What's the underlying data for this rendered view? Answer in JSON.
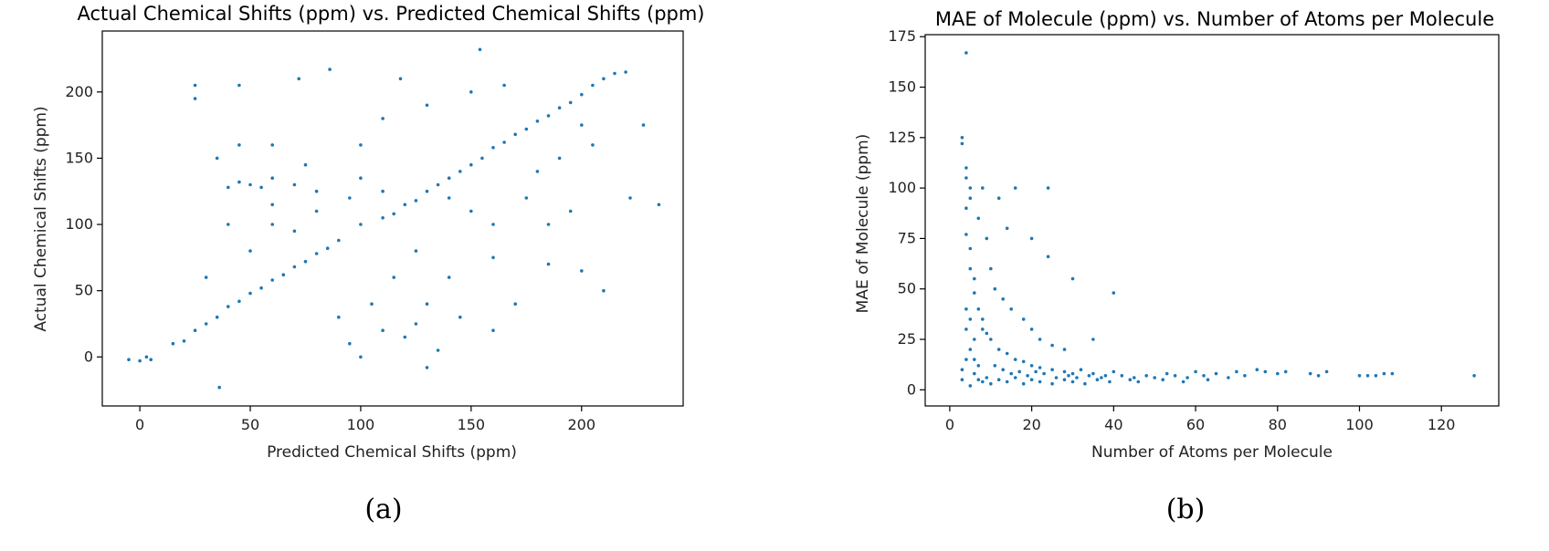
{
  "chart_data": [
    {
      "type": "scatter",
      "title": "Actual Chemical Shifts (ppm) vs. Predicted Chemical Shifts (ppm)",
      "xlabel": "Predicted Chemical Shifts (ppm)",
      "ylabel": "Actual Chemical Shifts (ppm)",
      "xlim": [
        -17,
        246
      ],
      "ylim": [
        -37,
        246
      ],
      "xticks": [
        0,
        50,
        100,
        150,
        200
      ],
      "yticks": [
        0,
        50,
        100,
        150,
        200
      ],
      "grid": false,
      "color": "#1f77b4",
      "caption": "(a)",
      "trend": "dense cloud of points along the diagonal y = x from about (-5, -5) to (215, 215), with a secondary horizontal cluster near y = 125–135 for x ≈ 35–110 and scattered outliers",
      "points": [
        [
          -5,
          -2
        ],
        [
          0,
          -3
        ],
        [
          5,
          -2
        ],
        [
          3,
          0
        ],
        [
          15,
          10
        ],
        [
          20,
          12
        ],
        [
          25,
          20
        ],
        [
          30,
          25
        ],
        [
          35,
          30
        ],
        [
          40,
          38
        ],
        [
          45,
          42
        ],
        [
          50,
          48
        ],
        [
          55,
          52
        ],
        [
          60,
          58
        ],
        [
          65,
          62
        ],
        [
          70,
          68
        ],
        [
          75,
          72
        ],
        [
          80,
          78
        ],
        [
          85,
          82
        ],
        [
          90,
          88
        ],
        [
          100,
          100
        ],
        [
          110,
          105
        ],
        [
          115,
          108
        ],
        [
          120,
          115
        ],
        [
          125,
          118
        ],
        [
          130,
          125
        ],
        [
          135,
          130
        ],
        [
          140,
          135
        ],
        [
          145,
          140
        ],
        [
          150,
          145
        ],
        [
          155,
          150
        ],
        [
          160,
          158
        ],
        [
          165,
          162
        ],
        [
          170,
          168
        ],
        [
          175,
          172
        ],
        [
          180,
          178
        ],
        [
          185,
          182
        ],
        [
          190,
          188
        ],
        [
          195,
          192
        ],
        [
          200,
          198
        ],
        [
          205,
          205
        ],
        [
          210,
          210
        ],
        [
          215,
          214
        ],
        [
          220,
          215
        ],
        [
          40,
          128
        ],
        [
          45,
          132
        ],
        [
          50,
          130
        ],
        [
          55,
          128
        ],
        [
          60,
          135
        ],
        [
          70,
          130
        ],
        [
          80,
          125
        ],
        [
          95,
          120
        ],
        [
          100,
          135
        ],
        [
          110,
          125
        ],
        [
          25,
          205
        ],
        [
          25,
          195
        ],
        [
          45,
          205
        ],
        [
          72,
          210
        ],
        [
          86,
          217
        ],
        [
          118,
          210
        ],
        [
          154,
          232
        ],
        [
          120,
          15
        ],
        [
          100,
          0
        ],
        [
          95,
          10
        ],
        [
          130,
          40
        ],
        [
          140,
          60
        ],
        [
          160,
          20
        ],
        [
          170,
          40
        ],
        [
          185,
          70
        ],
        [
          200,
          65
        ],
        [
          210,
          50
        ],
        [
          235,
          115
        ],
        [
          228,
          175
        ],
        [
          222,
          120
        ],
        [
          36,
          -23
        ],
        [
          130,
          -8
        ],
        [
          60,
          100
        ],
        [
          70,
          95
        ],
        [
          80,
          110
        ],
        [
          60,
          115
        ],
        [
          140,
          120
        ],
        [
          150,
          110
        ],
        [
          160,
          100
        ],
        [
          175,
          120
        ],
        [
          180,
          140
        ],
        [
          90,
          30
        ],
        [
          105,
          40
        ],
        [
          115,
          60
        ],
        [
          125,
          80
        ],
        [
          30,
          60
        ],
        [
          50,
          80
        ],
        [
          40,
          100
        ],
        [
          35,
          150
        ],
        [
          45,
          160
        ],
        [
          60,
          160
        ],
        [
          75,
          145
        ],
        [
          100,
          160
        ],
        [
          110,
          180
        ],
        [
          130,
          190
        ],
        [
          150,
          200
        ],
        [
          165,
          205
        ],
        [
          200,
          175
        ],
        [
          190,
          150
        ],
        [
          205,
          160
        ],
        [
          185,
          100
        ],
        [
          195,
          110
        ],
        [
          160,
          75
        ],
        [
          145,
          30
        ],
        [
          125,
          25
        ],
        [
          135,
          5
        ],
        [
          110,
          20
        ]
      ]
    },
    {
      "type": "scatter",
      "title": "MAE of Molecule (ppm) vs. Number of Atoms per Molecule",
      "xlabel": "Number of Atoms per Molecule",
      "ylabel": "MAE of Molecule (ppm)",
      "xlim": [
        -6,
        134
      ],
      "ylim": [
        -8,
        176
      ],
      "xticks": [
        0,
        20,
        40,
        60,
        80,
        100,
        120
      ],
      "yticks": [
        0,
        25,
        50,
        75,
        100,
        125,
        150,
        175
      ],
      "grid": false,
      "color": "#1f77b4",
      "caption": "(b)",
      "trend": "MAE is large (up to ~170 ppm) for small molecules (~3–10 atoms) and decays rapidly, flattening to ~5–10 ppm beyond ~40 atoms up to 128 atoms",
      "points": [
        [
          4,
          167
        ],
        [
          3,
          125
        ],
        [
          3,
          122
        ],
        [
          4,
          110
        ],
        [
          4,
          105
        ],
        [
          5,
          100
        ],
        [
          5,
          95
        ],
        [
          4,
          90
        ],
        [
          4,
          77
        ],
        [
          5,
          70
        ],
        [
          5,
          60
        ],
        [
          6,
          55
        ],
        [
          6,
          48
        ],
        [
          4,
          40
        ],
        [
          5,
          35
        ],
        [
          4,
          30
        ],
        [
          6,
          25
        ],
        [
          5,
          20
        ],
        [
          4,
          15
        ],
        [
          3,
          10
        ],
        [
          3,
          5
        ],
        [
          5,
          2
        ],
        [
          8,
          100
        ],
        [
          12,
          95
        ],
        [
          14,
          80
        ],
        [
          16,
          100
        ],
        [
          20,
          75
        ],
        [
          24,
          100
        ],
        [
          24,
          66
        ],
        [
          7,
          85
        ],
        [
          9,
          75
        ],
        [
          10,
          60
        ],
        [
          11,
          50
        ],
        [
          13,
          45
        ],
        [
          15,
          40
        ],
        [
          18,
          35
        ],
        [
          20,
          30
        ],
        [
          22,
          25
        ],
        [
          25,
          22
        ],
        [
          28,
          20
        ],
        [
          30,
          55
        ],
        [
          35,
          25
        ],
        [
          40,
          48
        ],
        [
          8,
          30
        ],
        [
          10,
          25
        ],
        [
          12,
          20
        ],
        [
          14,
          18
        ],
        [
          16,
          15
        ],
        [
          18,
          14
        ],
        [
          20,
          12
        ],
        [
          22,
          11
        ],
        [
          25,
          10
        ],
        [
          28,
          9
        ],
        [
          30,
          8
        ],
        [
          32,
          10
        ],
        [
          35,
          8
        ],
        [
          38,
          7
        ],
        [
          40,
          9
        ],
        [
          42,
          7
        ],
        [
          45,
          6
        ],
        [
          48,
          7
        ],
        [
          50,
          6
        ],
        [
          53,
          8
        ],
        [
          55,
          7
        ],
        [
          58,
          6
        ],
        [
          60,
          9
        ],
        [
          62,
          7
        ],
        [
          65,
          8
        ],
        [
          68,
          6
        ],
        [
          70,
          9
        ],
        [
          72,
          7
        ],
        [
          75,
          10
        ],
        [
          77,
          9
        ],
        [
          80,
          8
        ],
        [
          82,
          9
        ],
        [
          88,
          8
        ],
        [
          90,
          7
        ],
        [
          92,
          9
        ],
        [
          100,
          7
        ],
        [
          102,
          7
        ],
        [
          104,
          7
        ],
        [
          106,
          8
        ],
        [
          108,
          8
        ],
        [
          128,
          7
        ],
        [
          6,
          8
        ],
        [
          7,
          5
        ],
        [
          8,
          4
        ],
        [
          9,
          6
        ],
        [
          10,
          3
        ],
        [
          12,
          5
        ],
        [
          14,
          4
        ],
        [
          16,
          6
        ],
        [
          18,
          3
        ],
        [
          20,
          5
        ],
        [
          22,
          4
        ],
        [
          25,
          3
        ],
        [
          28,
          5
        ],
        [
          30,
          4
        ],
        [
          33,
          3
        ],
        [
          36,
          5
        ],
        [
          39,
          4
        ],
        [
          7,
          40
        ],
        [
          8,
          35
        ],
        [
          9,
          28
        ],
        [
          6,
          15
        ],
        [
          7,
          12
        ],
        [
          11,
          12
        ],
        [
          13,
          10
        ],
        [
          15,
          8
        ],
        [
          17,
          9
        ],
        [
          19,
          7
        ],
        [
          21,
          9
        ],
        [
          23,
          8
        ],
        [
          26,
          6
        ],
        [
          29,
          7
        ],
        [
          31,
          6
        ],
        [
          34,
          7
        ],
        [
          37,
          6
        ],
        [
          44,
          5
        ],
        [
          46,
          4
        ],
        [
          52,
          5
        ],
        [
          57,
          4
        ],
        [
          63,
          5
        ]
      ]
    }
  ]
}
